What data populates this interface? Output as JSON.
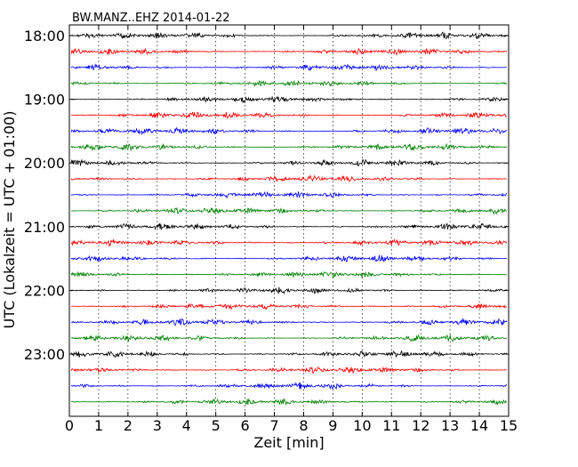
{
  "chart_data": {
    "type": "line",
    "title": "BW.MANZ..EHZ 2014-01-22",
    "xlabel": "Zeit  [min]",
    "ylabel": "UTC (Lokalzeit = UTC + 01:00)",
    "xlim": [
      0,
      15
    ],
    "x_ticks": [
      0,
      1,
      2,
      3,
      4,
      5,
      6,
      7,
      8,
      9,
      10,
      11,
      12,
      13,
      14,
      15
    ],
    "x_tick_labels": [
      "0",
      "1",
      "2",
      "3",
      "4",
      "5",
      "6",
      "7",
      "8",
      "9",
      "10",
      "11",
      "12",
      "13",
      "14",
      "15"
    ],
    "y_tick_labels": [
      "18:00",
      "19:00",
      "20:00",
      "21:00",
      "22:00",
      "23:00"
    ],
    "trace_count": 24,
    "trace_minutes_per_line": 15,
    "trace_colors": [
      "#000000",
      "#ff0000",
      "#0000ff",
      "#008000"
    ],
    "grid": "vertical dotted at each minute",
    "series": [
      {
        "label": "18:00",
        "color": "#000000"
      },
      {
        "label": "18:15",
        "color": "#ff0000"
      },
      {
        "label": "18:30",
        "color": "#0000ff"
      },
      {
        "label": "18:45",
        "color": "#008000"
      },
      {
        "label": "19:00",
        "color": "#000000"
      },
      {
        "label": "19:15",
        "color": "#ff0000"
      },
      {
        "label": "19:30",
        "color": "#0000ff"
      },
      {
        "label": "19:45",
        "color": "#008000"
      },
      {
        "label": "20:00",
        "color": "#000000"
      },
      {
        "label": "20:15",
        "color": "#ff0000"
      },
      {
        "label": "20:30",
        "color": "#0000ff"
      },
      {
        "label": "20:45",
        "color": "#008000"
      },
      {
        "label": "21:00",
        "color": "#000000"
      },
      {
        "label": "21:15",
        "color": "#ff0000"
      },
      {
        "label": "21:30",
        "color": "#0000ff"
      },
      {
        "label": "21:45",
        "color": "#008000"
      },
      {
        "label": "22:00",
        "color": "#000000"
      },
      {
        "label": "22:15",
        "color": "#ff0000"
      },
      {
        "label": "22:30",
        "color": "#0000ff"
      },
      {
        "label": "22:45",
        "color": "#008000"
      },
      {
        "label": "23:00",
        "color": "#000000"
      },
      {
        "label": "23:15",
        "color": "#ff0000"
      },
      {
        "label": "23:30",
        "color": "#0000ff"
      },
      {
        "label": "23:45",
        "color": "#008000"
      }
    ]
  }
}
